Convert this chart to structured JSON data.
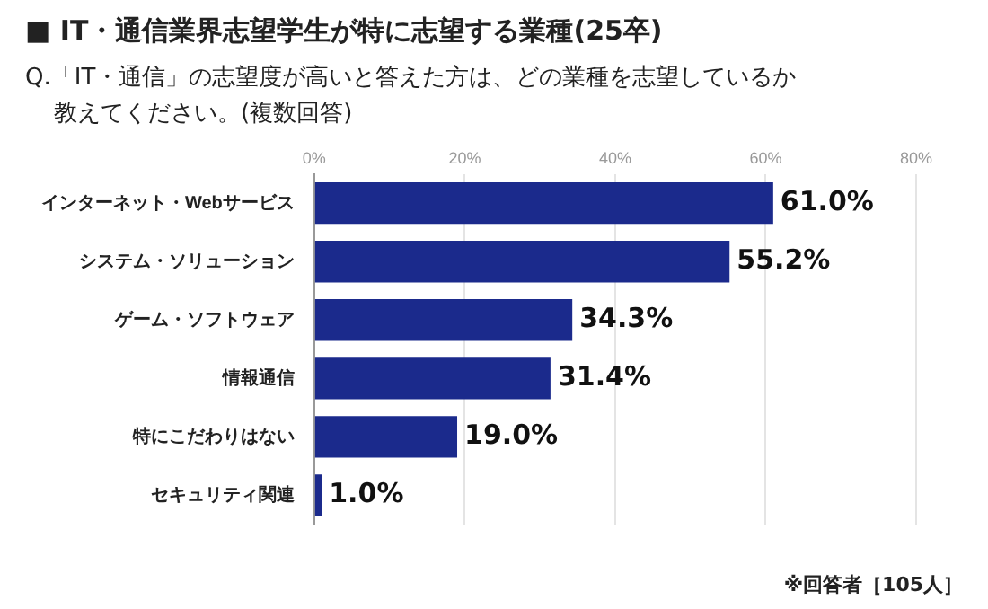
{
  "chart_data": {
    "type": "bar",
    "orientation": "horizontal",
    "title": "■ IT・通信業界志望学生が特に志望する業種(25卒)",
    "subtitle": "Q.「IT・通信」の志望度が高いと答えた方は、どの業種を志望しているか教えてください。(複数回答)",
    "categories": [
      "インターネット・Webサービス",
      "システム・ソリューション",
      "ゲーム・ソフトウェア",
      "情報通信",
      "特にこだわりはない",
      "セキュリティ関連"
    ],
    "values": [
      61.0,
      55.2,
      34.3,
      31.4,
      19.0,
      1.0
    ],
    "value_labels": [
      "61.0%",
      "55.2%",
      "34.3%",
      "31.4%",
      "19.0%",
      "1.0%"
    ],
    "color": "#1b2a8c",
    "xlim": [
      0,
      80
    ],
    "xticks": [
      {
        "value": 0,
        "label": "0%"
      },
      {
        "value": 20,
        "label": "20%"
      },
      {
        "value": 40,
        "label": "40%"
      },
      {
        "value": 60,
        "label": "60%"
      },
      {
        "value": 80,
        "label": "80%"
      }
    ],
    "grid": "x",
    "legend": false,
    "annotations": [
      "※回答者［105人］"
    ]
  }
}
